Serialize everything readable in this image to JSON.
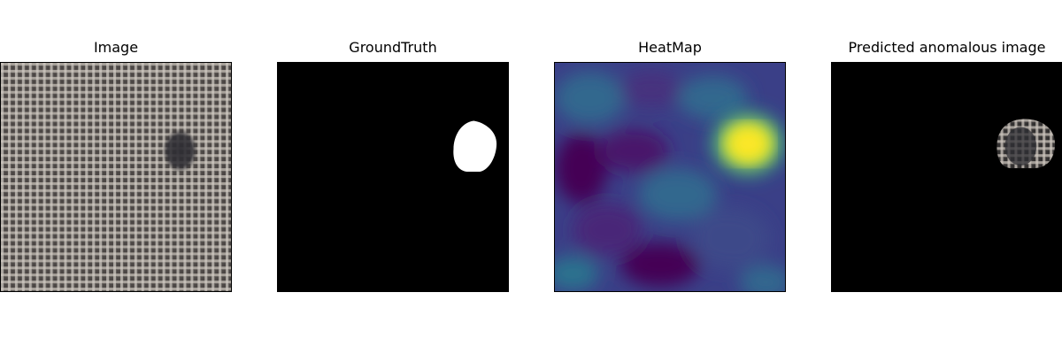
{
  "panels": [
    {
      "title": "Image"
    },
    {
      "title": "GroundTruth"
    },
    {
      "title": "HeatMap"
    },
    {
      "title": "Predicted anomalous image"
    }
  ],
  "colors": {
    "fabric_base": "#6f6b67",
    "fabric_thread": "#c9c3bb",
    "defect_spot": "#2e2d33",
    "mask_fg": "#ffffff",
    "mask_bg": "#000000",
    "heat_low": "#440154",
    "heat_mid": "#31688e",
    "heat_high": "#fde725"
  }
}
